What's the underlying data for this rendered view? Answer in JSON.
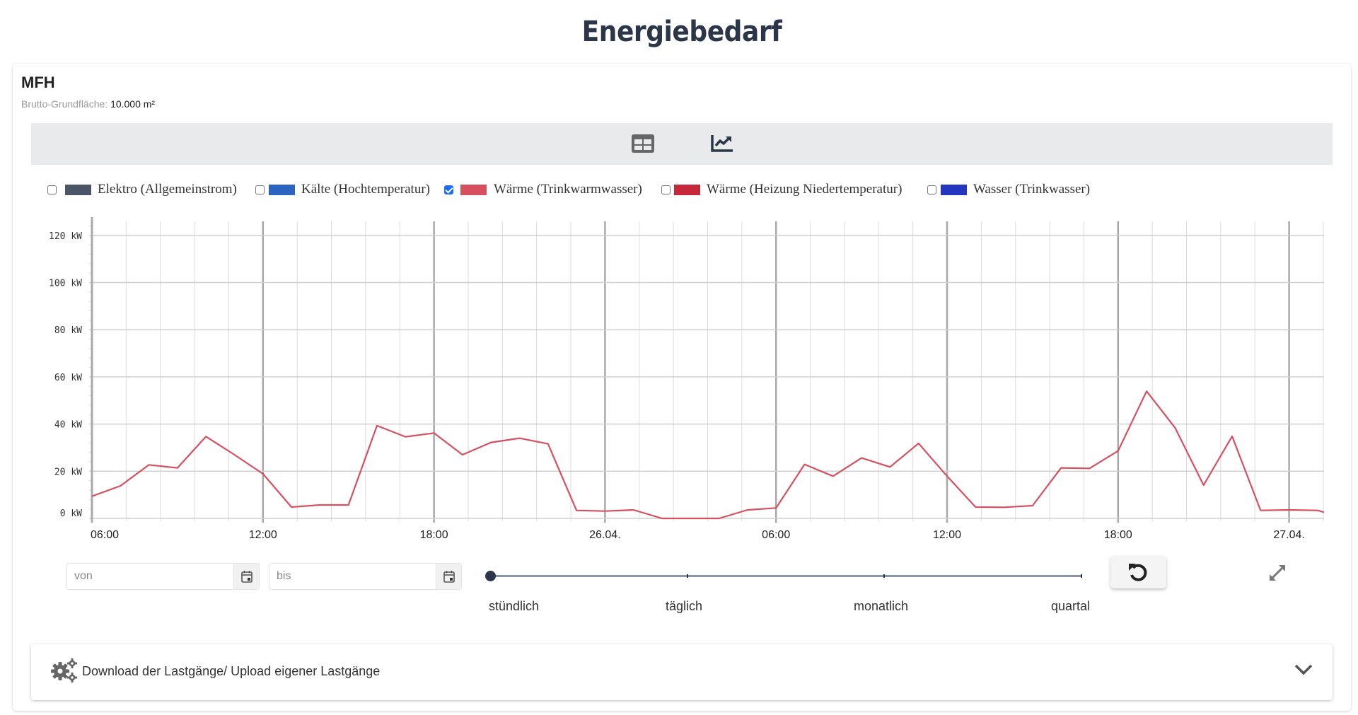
{
  "page": {
    "title": "Energiebedarf"
  },
  "card": {
    "title": "MFH",
    "subtitle_label": "Brutto-Grundfläche:",
    "subtitle_value": "10.000 m²"
  },
  "toolbar": {
    "buttons": [
      {
        "name": "table-view",
        "icon": "table-icon",
        "active": false
      },
      {
        "name": "chart-view",
        "icon": "line-chart-icon",
        "active": true
      }
    ]
  },
  "legend": {
    "items": [
      {
        "label": "Elektro (Allgemeinstrom)",
        "color": "#4a5568",
        "checked": false
      },
      {
        "label": "Kälte (Hochtemperatur)",
        "color": "#2b63c0",
        "checked": false
      },
      {
        "label": "Wärme (Trinkwarmwasser)",
        "color": "#d6505f",
        "checked": true
      },
      {
        "label": "Wärme (Heizung Niedertemperatur)",
        "color": "#c5283a",
        "checked": false
      },
      {
        "label": "Wasser (Trinkwasser)",
        "color": "#2236c0",
        "checked": false
      }
    ]
  },
  "chart_data": {
    "type": "line",
    "title": "",
    "xlabel": "",
    "ylabel": "",
    "y_unit": "kW",
    "ylim": [
      0,
      125
    ],
    "y_ticks": [
      "0 kW",
      "20 kW",
      "40 kW",
      "60 kW",
      "80 kW",
      "100 kW",
      "120 kW"
    ],
    "x_ticks": [
      "06:00",
      "12:00",
      "18:00",
      "26.04.",
      "06:00",
      "12:00",
      "18:00",
      "27.04."
    ],
    "grid": true,
    "legend_position": "top",
    "x": [
      "25.04. 06:00",
      "07:00",
      "08:00",
      "09:00",
      "10:00",
      "11:00",
      "12:00",
      "13:00",
      "14:00",
      "15:00",
      "16:00",
      "17:00",
      "18:00",
      "19:00",
      "20:00",
      "21:00",
      "22:00",
      "23:00",
      "26.04. 00:00",
      "01:00",
      "02:00",
      "03:00",
      "04:00",
      "05:00",
      "06:00",
      "07:00",
      "08:00",
      "09:00",
      "10:00",
      "11:00",
      "12:00",
      "13:00",
      "14:00",
      "15:00",
      "16:00",
      "17:00",
      "18:00",
      "19:00",
      "20:00",
      "21:00",
      "22:00",
      "23:00",
      "27.04. 00:00",
      "01:00"
    ],
    "series": [
      {
        "name": "Wärme (Trinkwarmwasser)",
        "color": "#d6505f",
        "values": [
          9.4,
          13.8,
          22.7,
          21.4,
          34.7,
          27.0,
          18.9,
          4.8,
          5.7,
          5.7,
          39.3,
          34.6,
          36.2,
          27.0,
          32.2,
          34.0,
          31.6,
          3.4,
          3.1,
          3.6,
          0.0,
          0.0,
          0.0,
          3.6,
          4.4,
          22.9,
          17.9,
          25.6,
          21.8,
          31.8,
          17.9,
          4.8,
          4.7,
          5.4,
          21.4,
          21.2,
          28.6,
          53.9,
          38.4,
          14.1,
          34.8,
          3.4,
          3.6,
          3.4
        ]
      }
    ]
  },
  "controls": {
    "from_placeholder": "von",
    "to_placeholder": "bis",
    "resolution_options": [
      "stündlich",
      "täglich",
      "monatlich",
      "quartal"
    ],
    "resolution_selected": "stündlich"
  },
  "accordion": {
    "label": "Download der Lastgänge/ Upload eigener Lastgänge"
  }
}
